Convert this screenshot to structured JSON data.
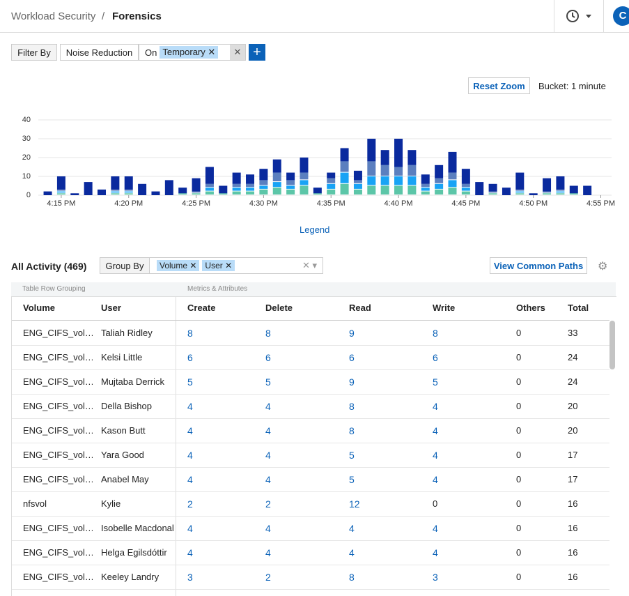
{
  "header": {
    "section": "Workload Security",
    "separator": "/",
    "page": "Forensics",
    "avatar": "C"
  },
  "filters": {
    "label": "Filter By",
    "name": "Noise Reduction",
    "operator": "On",
    "value": "Temporary"
  },
  "zoom": {
    "reset": "Reset Zoom",
    "bucket": "Bucket: 1 minute"
  },
  "chart_data": {
    "type": "stacked-bar",
    "x": [
      14,
      15,
      16,
      17,
      18,
      19,
      20,
      21,
      22,
      23,
      24,
      25,
      26,
      27,
      28,
      29,
      30,
      31,
      32,
      33,
      34,
      35,
      36,
      37,
      38,
      39,
      40,
      41,
      42,
      43,
      44,
      45,
      46,
      47,
      48,
      49,
      50,
      51,
      52,
      53,
      54
    ],
    "series": [
      {
        "color": "#5cc6a8",
        "values": [
          0,
          1,
          0,
          0,
          0,
          1,
          1,
          0,
          0,
          0,
          1,
          1,
          2,
          1,
          2,
          2,
          3,
          4,
          3,
          5,
          1,
          3,
          6,
          3,
          5,
          5,
          5,
          5,
          2,
          3,
          4,
          2,
          0,
          1,
          0,
          1,
          0,
          1,
          1,
          1,
          0
        ]
      },
      {
        "color": "#18a3f5",
        "values": [
          0,
          1,
          0,
          0,
          0,
          1,
          1,
          0,
          0,
          0,
          0,
          0,
          2,
          0,
          2,
          2,
          2,
          3,
          2,
          3,
          0,
          3,
          6,
          3,
          5,
          5,
          5,
          5,
          2,
          3,
          4,
          2,
          0,
          0,
          0,
          1,
          0,
          0,
          1,
          0,
          0
        ]
      },
      {
        "color": "#5b7fbf",
        "values": [
          0,
          1,
          0,
          0,
          0,
          1,
          1,
          0,
          0,
          0,
          0,
          1,
          2,
          0,
          2,
          2,
          3,
          5,
          3,
          4,
          0,
          3,
          6,
          2,
          8,
          6,
          5,
          6,
          2,
          3,
          4,
          2,
          0,
          1,
          0,
          1,
          0,
          1,
          1,
          0,
          0
        ]
      },
      {
        "color": "#0a2a9e",
        "values": [
          2,
          7,
          1,
          7,
          3,
          7,
          7,
          6,
          2,
          8,
          3,
          7,
          9,
          4,
          6,
          5,
          6,
          7,
          4,
          8,
          3,
          3,
          7,
          5,
          12,
          8,
          15,
          8,
          5,
          7,
          11,
          8,
          7,
          4,
          4,
          9,
          1,
          7,
          7,
          4,
          5
        ]
      }
    ],
    "xlim": [
      13.3,
      55.8
    ],
    "xticks": [
      {
        "value": 15,
        "label": "4:15 PM"
      },
      {
        "value": 20,
        "label": "4:20 PM"
      },
      {
        "value": 25,
        "label": "4:25 PM"
      },
      {
        "value": 30,
        "label": "4:30 PM"
      },
      {
        "value": 35,
        "label": "4:35 PM"
      },
      {
        "value": 40,
        "label": "4:40 PM"
      },
      {
        "value": 45,
        "label": "4:45 PM"
      },
      {
        "value": 50,
        "label": "4:50 PM"
      },
      {
        "value": 55,
        "label": "4:55 PM"
      }
    ],
    "ylim": [
      0,
      40
    ],
    "yticks": [
      0,
      10,
      20,
      30,
      40
    ],
    "grid": true,
    "legend_toggle": "Legend"
  },
  "activity": {
    "title": "All Activity (469)",
    "group_by": "Group By",
    "groups": [
      "Volume",
      "User"
    ],
    "common_paths": "View Common Paths"
  },
  "table": {
    "group_headers": [
      "Table Row Grouping",
      "Metrics & Attributes"
    ],
    "columns": [
      "Volume",
      "User",
      "Create",
      "Delete",
      "Read",
      "Write",
      "Others",
      "Total"
    ],
    "rows": [
      [
        "ENG_CIFS_vol…",
        "Taliah Ridley",
        8,
        8,
        9,
        8,
        0,
        33
      ],
      [
        "ENG_CIFS_vol…",
        "Kelsi Little",
        6,
        6,
        6,
        6,
        0,
        24
      ],
      [
        "ENG_CIFS_vol…",
        "Mujtaba Derrick",
        5,
        5,
        9,
        5,
        0,
        24
      ],
      [
        "ENG_CIFS_vol…",
        "Della Bishop",
        4,
        4,
        8,
        4,
        0,
        20
      ],
      [
        "ENG_CIFS_vol…",
        "Kason Butt",
        4,
        4,
        8,
        4,
        0,
        20
      ],
      [
        "ENG_CIFS_vol…",
        "Yara Good",
        4,
        4,
        5,
        4,
        0,
        17
      ],
      [
        "ENG_CIFS_vol…",
        "Anabel May",
        4,
        4,
        5,
        4,
        0,
        17
      ],
      [
        "nfsvol",
        "Kylie",
        2,
        2,
        12,
        0,
        0,
        16
      ],
      [
        "ENG_CIFS_vol…",
        "Isobelle Macdonal",
        4,
        4,
        4,
        4,
        0,
        16
      ],
      [
        "ENG_CIFS_vol…",
        "Helga Egilsdóttir",
        4,
        4,
        4,
        4,
        0,
        16
      ],
      [
        "ENG_CIFS_vol…",
        "Keeley Landry",
        3,
        2,
        8,
        3,
        0,
        16
      ]
    ]
  }
}
